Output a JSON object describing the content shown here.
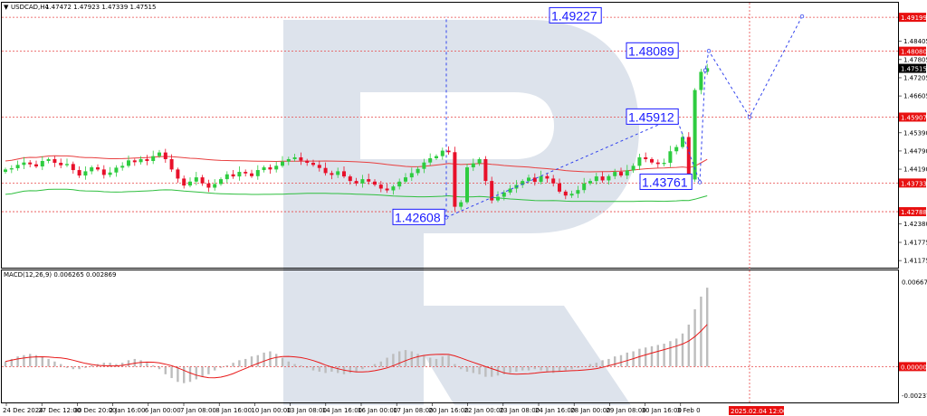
{
  "header": {
    "symbol_label": "USDCAD,H4",
    "ohlc": "1.47472 1.47923 1.47339 1.47515",
    "menu_arrow": "triangle-down-icon"
  },
  "macd_label": "MACD(12,26,9) 0.006265 0.002869",
  "colors": {
    "bull": "#2ecc40",
    "bear": "#e8102a",
    "ma_red": "#e84040",
    "ma_green": "#2fbf3f",
    "macd_hist": "#bdbdbd",
    "macd_signal": "#e81818",
    "level_line": "#e84848",
    "forecast": "#3344ee",
    "watermark": "#dfe5ee"
  },
  "chart_data": [
    {
      "type": "line",
      "title": "USDCAD,H4",
      "ylim": [
        1.41,
        1.4965
      ],
      "price_ticks": [
        "1.49020",
        "1.48405",
        "1.47805",
        "1.47205",
        "1.46605",
        "1.45990",
        "1.45390",
        "1.44790",
        "1.44190",
        "1.43590",
        "1.42990",
        "1.42380",
        "1.41775",
        "1.41175"
      ],
      "x_labels": [
        "24 Dec 2024",
        "27 Dec 12:00",
        "30 Dec 20:00",
        "2 Jan 16:00",
        "6 Jan 00:00",
        "7 Jan 08:00",
        "8 Jan 16:00",
        "10 Jan 00:00",
        "13 Jan 08:00",
        "14 Jan 16:00",
        "16 Jan 00:00",
        "17 Jan 08:00",
        "20 Jan 16:00",
        "22 Jan 00:00",
        "23 Jan 08:00",
        "24 Jan 16:00",
        "28 Jan 00:00",
        "29 Jan 08:00",
        "30 Jan 16:00",
        "3 Feb 0"
      ],
      "time_marker": "2025.02.04 12:00",
      "levels": [
        {
          "label": "1.49199",
          "value": 1.49199
        },
        {
          "label": "1.48080",
          "value": 1.4808
        },
        {
          "label": "1.45907",
          "value": 1.45907
        },
        {
          "label": "1.43733",
          "value": 1.43733
        },
        {
          "label": "1.42788",
          "value": 1.42788
        }
      ],
      "current_price": "1.47515",
      "forecast_labels": [
        "1.49227",
        "1.48089",
        "1.45912",
        "1.43761",
        "1.42608"
      ],
      "forecast_points": [
        1.426,
        1.4591,
        1.4376,
        1.4745,
        1.4809,
        1.4591,
        1.4923
      ],
      "close_series": [
        1.4418,
        1.4422,
        1.4433,
        1.4441,
        1.4435,
        1.4428,
        1.4446,
        1.4452,
        1.444,
        1.4432,
        1.4436,
        1.4416,
        1.4398,
        1.4412,
        1.4425,
        1.4418,
        1.44,
        1.4408,
        1.4424,
        1.443,
        1.4448,
        1.4442,
        1.4452,
        1.4446,
        1.4462,
        1.4474,
        1.4452,
        1.4418,
        1.4388,
        1.4365,
        1.4378,
        1.4392,
        1.4372,
        1.4358,
        1.437,
        1.4386,
        1.4402,
        1.4395,
        1.441,
        1.4405,
        1.4396,
        1.4416,
        1.4425,
        1.4418,
        1.443,
        1.4444,
        1.4452,
        1.4458,
        1.4447,
        1.444,
        1.4433,
        1.4423,
        1.4406,
        1.44,
        1.4412,
        1.4395,
        1.438,
        1.4372,
        1.4386,
        1.4378,
        1.4368,
        1.4355,
        1.4349,
        1.4362,
        1.4378,
        1.4392,
        1.4406,
        1.442,
        1.4441,
        1.4455,
        1.4462,
        1.448,
        1.4475,
        1.4295,
        1.431,
        1.4425,
        1.4438,
        1.4452,
        1.438,
        1.4316,
        1.4328,
        1.4342,
        1.4355,
        1.4367,
        1.438,
        1.4391,
        1.4377,
        1.4396,
        1.4388,
        1.4372,
        1.4345,
        1.4332,
        1.4338,
        1.435,
        1.4372,
        1.438,
        1.4395,
        1.4382,
        1.4396,
        1.441,
        1.4398,
        1.4415,
        1.443,
        1.4458,
        1.4452,
        1.4441,
        1.4436,
        1.444,
        1.4478,
        1.4492,
        1.4525,
        1.4385,
        1.468,
        1.474,
        1.4752
      ]
    },
    {
      "type": "bar",
      "title": "MACD(12,26,9) 0.006265 0.002869",
      "ylim": [
        -0.0026,
        0.0072
      ],
      "ticks": [
        "0.006677",
        "0.000000",
        "-0.002378"
      ],
      "hist": [
        0.0004,
        0.0006,
        0.0008,
        0.0009,
        0.001,
        0.0009,
        0.0008,
        0.0006,
        0.0004,
        0.0002,
        -0.0001,
        -0.0002,
        -0.0002,
        -0.0001,
        0.0001,
        0.0002,
        0.0003,
        0.0003,
        0.0002,
        0.0003,
        0.0005,
        0.0006,
        0.0005,
        0.0003,
        0.0001,
        -0.0002,
        -0.0006,
        -0.0009,
        -0.0012,
        -0.0013,
        -0.0012,
        -0.001,
        -0.0008,
        -0.0006,
        -0.0003,
        -0.0001,
        0.0001,
        0.0003,
        0.0005,
        0.0006,
        0.0008,
        0.0009,
        0.0011,
        0.0012,
        0.001,
        0.0007,
        0.0004,
        0.0002,
        0.0001,
        -0.0001,
        -0.0003,
        -0.0004,
        -0.0005,
        -0.0004,
        -0.0005,
        -0.0006,
        -0.0005,
        -0.0004,
        -0.0002,
        0.0,
        0.0002,
        0.0004,
        0.0007,
        0.001,
        0.0012,
        0.0013,
        0.0012,
        0.001,
        0.0009,
        0.0007,
        0.0006,
        0.0008,
        0.0009,
        0.0002,
        -0.0002,
        -0.0004,
        -0.0005,
        -0.0006,
        -0.0008,
        -0.0008,
        -0.0007,
        -0.0006,
        -0.0005,
        -0.0004,
        -0.0003,
        -0.0003,
        -0.0002,
        -0.0003,
        -0.0004,
        -0.0005,
        -0.0004,
        -0.0003,
        -0.0002,
        -0.0001,
        0.0,
        0.0002,
        0.0003,
        0.0005,
        0.0006,
        0.0008,
        0.0009,
        0.0011,
        0.0012,
        0.0014,
        0.0015,
        0.0016,
        0.0017,
        0.0018,
        0.002,
        0.0022,
        0.0026,
        0.0033,
        0.0045,
        0.0055,
        0.0062
      ]
    }
  ]
}
